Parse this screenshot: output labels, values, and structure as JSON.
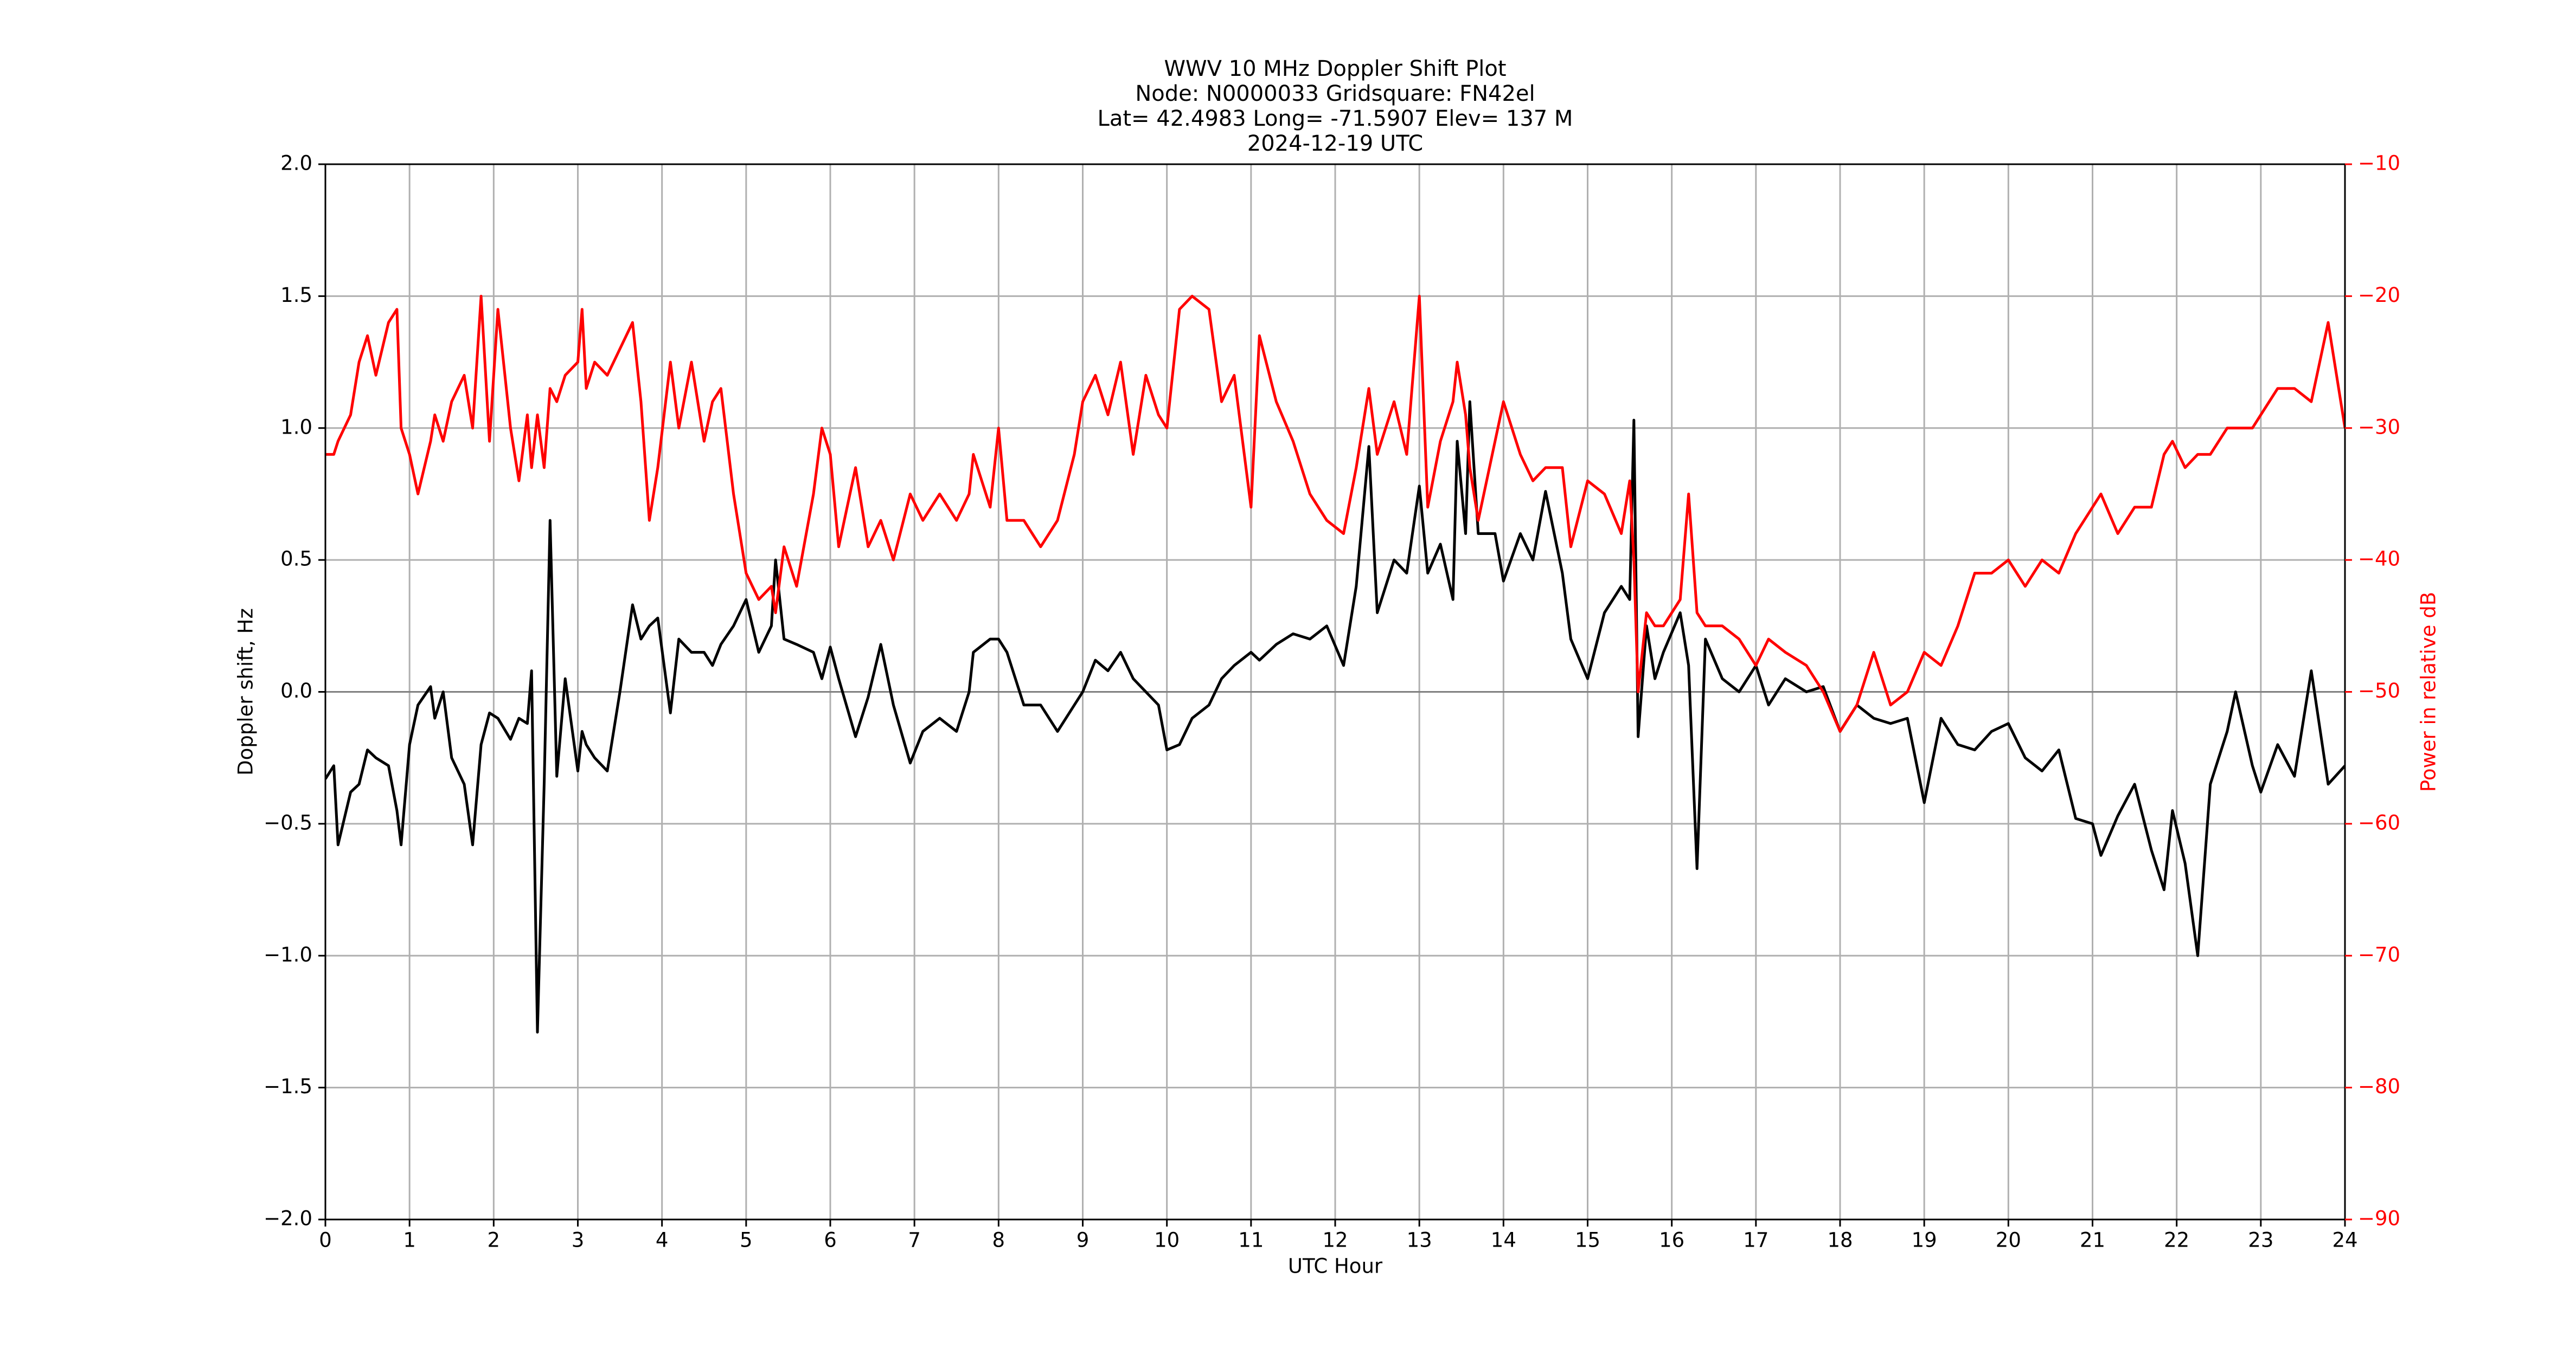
{
  "chart_data": {
    "type": "line",
    "title": [
      "WWV 10 MHz Doppler Shift Plot",
      "Node:  N0000033     Gridsquare:  FN42el",
      "Lat= 42.4983     Long= -71.5907     Elev= 137 M",
      "2024-12-19  UTC"
    ],
    "x_label": "UTC Hour",
    "y_label": "Doppler shift, Hz",
    "y2_label": "Power in relative dB",
    "y2_color": "#ff0000",
    "grid": true,
    "reference_line": 0,
    "x": [
      0,
      0.1,
      0.15,
      0.3,
      0.4,
      0.5,
      0.6,
      0.75,
      0.85,
      0.9,
      1.0,
      1.1,
      1.25,
      1.3,
      1.4,
      1.5,
      1.65,
      1.75,
      1.85,
      1.95,
      2.05,
      2.2,
      2.3,
      2.4,
      2.45,
      2.52,
      2.6,
      2.67,
      2.75,
      2.85,
      3.0,
      3.05,
      3.1,
      3.2,
      3.35,
      3.5,
      3.65,
      3.75,
      3.85,
      3.95,
      4.1,
      4.2,
      4.35,
      4.5,
      4.6,
      4.7,
      4.85,
      5.0,
      5.15,
      5.3,
      5.35,
      5.45,
      5.6,
      5.8,
      5.9,
      6.0,
      6.1,
      6.3,
      6.45,
      6.6,
      6.75,
      6.95,
      7.1,
      7.3,
      7.5,
      7.65,
      7.7,
      7.9,
      8.0,
      8.1,
      8.3,
      8.5,
      8.7,
      8.9,
      9.0,
      9.15,
      9.3,
      9.45,
      9.6,
      9.75,
      9.9,
      10.0,
      10.15,
      10.3,
      10.5,
      10.65,
      10.8,
      11.0,
      11.1,
      11.3,
      11.5,
      11.7,
      11.9,
      12.1,
      12.25,
      12.4,
      12.5,
      12.7,
      12.85,
      13.0,
      13.1,
      13.25,
      13.4,
      13.45,
      13.55,
      13.6,
      13.7,
      13.9,
      14.0,
      14.2,
      14.35,
      14.5,
      14.7,
      14.8,
      15.0,
      15.2,
      15.4,
      15.5,
      15.55,
      15.6,
      15.7,
      15.8,
      15.9,
      16.1,
      16.2,
      16.3,
      16.4,
      16.6,
      16.8,
      17.0,
      17.15,
      17.35,
      17.6,
      17.8,
      18.0,
      18.2,
      18.4,
      18.6,
      18.8,
      19.0,
      19.2,
      19.4,
      19.6,
      19.8,
      20.0,
      20.2,
      20.4,
      20.6,
      20.8,
      21.0,
      21.1,
      21.3,
      21.5,
      21.7,
      21.85,
      21.95,
      22.1,
      22.25,
      22.4,
      22.6,
      22.7,
      22.9,
      23.0,
      23.2,
      23.4,
      23.6,
      23.8,
      24.0
    ],
    "series": [
      {
        "name": "Doppler shift",
        "color": "#000000",
        "axis": "y",
        "values": [
          -0.33,
          -0.28,
          -0.58,
          -0.38,
          -0.35,
          -0.22,
          -0.25,
          -0.28,
          -0.45,
          -0.58,
          -0.2,
          -0.05,
          0.02,
          -0.1,
          0.0,
          -0.25,
          -0.35,
          -0.58,
          -0.2,
          -0.08,
          -0.1,
          -0.18,
          -0.1,
          -0.12,
          0.08,
          -1.29,
          -0.35,
          0.65,
          -0.32,
          0.05,
          -0.3,
          -0.15,
          -0.2,
          -0.25,
          -0.3,
          0.0,
          0.33,
          0.2,
          0.25,
          0.28,
          -0.08,
          0.2,
          0.15,
          0.15,
          0.1,
          0.18,
          0.25,
          0.35,
          0.15,
          0.25,
          0.5,
          0.2,
          0.18,
          0.15,
          0.05,
          0.17,
          0.05,
          -0.17,
          -0.02,
          0.18,
          -0.05,
          -0.27,
          -0.15,
          -0.1,
          -0.15,
          0.0,
          0.15,
          0.2,
          0.2,
          0.15,
          -0.05,
          -0.05,
          -0.15,
          -0.05,
          0.0,
          0.12,
          0.08,
          0.15,
          0.05,
          0.0,
          -0.05,
          -0.22,
          -0.2,
          -0.1,
          -0.05,
          0.05,
          0.1,
          0.15,
          0.12,
          0.18,
          0.22,
          0.2,
          0.25,
          0.1,
          0.4,
          0.93,
          0.3,
          0.5,
          0.45,
          0.78,
          0.45,
          0.56,
          0.35,
          0.95,
          0.6,
          1.1,
          0.6,
          0.6,
          0.42,
          0.6,
          0.5,
          0.76,
          0.45,
          0.2,
          0.05,
          0.3,
          0.4,
          0.35,
          1.03,
          -0.17,
          0.25,
          0.05,
          0.15,
          0.3,
          0.1,
          -0.67,
          0.2,
          0.05,
          0.0,
          0.1,
          -0.05,
          0.05,
          0.0,
          0.02,
          -0.15,
          -0.05,
          -0.1,
          -0.12,
          -0.1,
          -0.42,
          -0.1,
          -0.2,
          -0.22,
          -0.15,
          -0.12,
          -0.25,
          -0.3,
          -0.22,
          -0.48,
          -0.5,
          -0.62,
          -0.47,
          -0.35,
          -0.6,
          -0.75,
          -0.45,
          -0.65,
          -1.0,
          -0.35,
          -0.15,
          0.0,
          -0.28,
          -0.38,
          -0.2,
          -0.32,
          0.08,
          -0.35,
          -0.28
        ]
      },
      {
        "name": "Power",
        "color": "#ff0000",
        "axis": "y2",
        "values": [
          -32,
          -32,
          -31,
          -29,
          -25,
          -23,
          -26,
          -22,
          -21,
          -30,
          -32,
          -35,
          -31,
          -29,
          -31,
          -28,
          -26,
          -30,
          -20,
          -31,
          -21,
          -30,
          -34,
          -29,
          -33,
          -29,
          -33,
          -27,
          -28,
          -26,
          -25,
          -21,
          -27,
          -25,
          -26,
          -24,
          -22,
          -28,
          -37,
          -33,
          -25,
          -30,
          -25,
          -31,
          -28,
          -27,
          -35,
          -41,
          -43,
          -42,
          -44,
          -39,
          -42,
          -35,
          -30,
          -32,
          -39,
          -33,
          -39,
          -37,
          -40,
          -35,
          -37,
          -35,
          -37,
          -35,
          -32,
          -36,
          -30,
          -37,
          -37,
          -39,
          -37,
          -32,
          -28,
          -26,
          -29,
          -25,
          -32,
          -26,
          -29,
          -30,
          -21,
          -20,
          -21,
          -28,
          -26,
          -36,
          -23,
          -28,
          -31,
          -35,
          -37,
          -38,
          -33,
          -27,
          -32,
          -28,
          -32,
          -20,
          -36,
          -31,
          -28,
          -25,
          -29,
          -33,
          -37,
          -31,
          -28,
          -32,
          -34,
          -33,
          -33,
          -39,
          -34,
          -35,
          -38,
          -34,
          -40,
          -50,
          -44,
          -45,
          -45,
          -43,
          -35,
          -44,
          -45,
          -45,
          -46,
          -48,
          -46,
          -47,
          -48,
          -50,
          -53,
          -51,
          -47,
          -51,
          -50,
          -47,
          -48,
          -45,
          -41,
          -41,
          -40,
          -42,
          -40,
          -41,
          -38,
          -36,
          -35,
          -38,
          -36,
          -36,
          -32,
          -31,
          -33,
          -32,
          -32,
          -30,
          -30,
          -30,
          -29,
          -27,
          -27,
          -28,
          -22,
          -30
        ]
      }
    ],
    "xlim": [
      0,
      24
    ],
    "xticks": [
      0,
      1,
      2,
      3,
      4,
      5,
      6,
      7,
      8,
      9,
      10,
      11,
      12,
      13,
      14,
      15,
      16,
      17,
      18,
      19,
      20,
      21,
      22,
      23,
      24
    ],
    "ylim": [
      -2.0,
      2.0
    ],
    "yticks": [
      {
        "value": -2.0,
        "label": "−2.0"
      },
      {
        "value": -1.5,
        "label": "−1.5"
      },
      {
        "value": -1.0,
        "label": "−1.0"
      },
      {
        "value": -0.5,
        "label": "−0.5"
      },
      {
        "value": 0.0,
        "label": "0.0"
      },
      {
        "value": 0.5,
        "label": "0.5"
      },
      {
        "value": 1.0,
        "label": "1.0"
      },
      {
        "value": 1.5,
        "label": "1.5"
      },
      {
        "value": 2.0,
        "label": "2.0"
      }
    ],
    "y2lim": [
      -90,
      -10
    ],
    "y2ticks": [
      {
        "value": -90,
        "label": "−90"
      },
      {
        "value": -80,
        "label": "−80"
      },
      {
        "value": -70,
        "label": "−70"
      },
      {
        "value": -60,
        "label": "−60"
      },
      {
        "value": -50,
        "label": "−50"
      },
      {
        "value": -40,
        "label": "−40"
      },
      {
        "value": -30,
        "label": "−30"
      },
      {
        "value": -20,
        "label": "−20"
      },
      {
        "value": -10,
        "label": "−10"
      }
    ]
  }
}
